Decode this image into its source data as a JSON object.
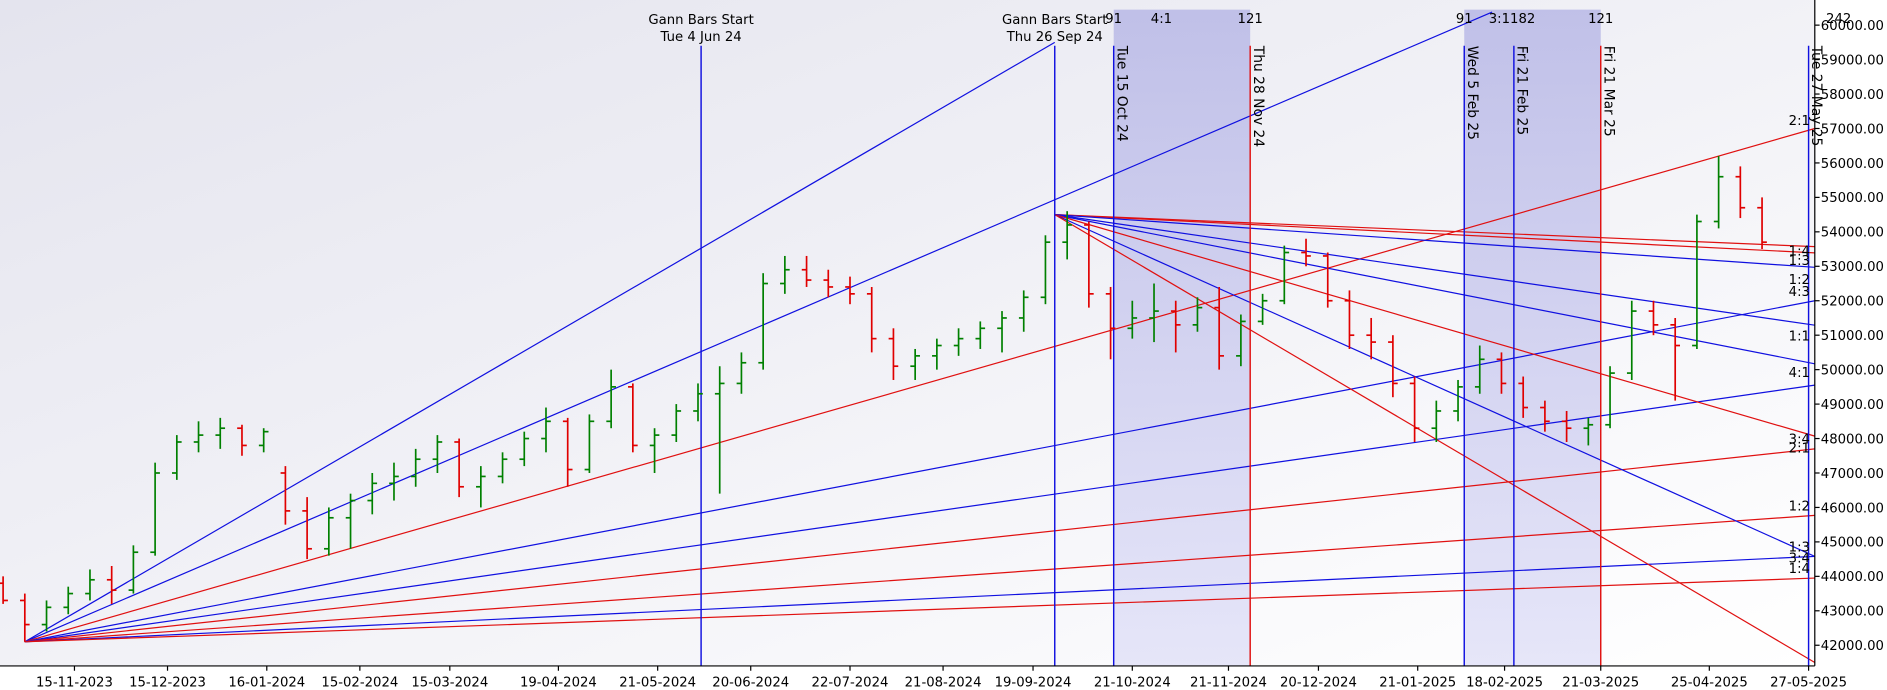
{
  "chart_data": {
    "type": "ohlc",
    "xlim": [
      "22-10-2023",
      "29-05-2025"
    ],
    "ylim": [
      41400,
      60450
    ],
    "yticks": [
      {
        "value": 42000,
        "label": "42000.00"
      },
      {
        "value": 43000,
        "label": "43000.00"
      },
      {
        "value": 44000,
        "label": "44000.00"
      },
      {
        "value": 45000,
        "label": "45000.00"
      },
      {
        "value": 46000,
        "label": "46000.00"
      },
      {
        "value": 47000,
        "label": "47000.00"
      },
      {
        "value": 48000,
        "label": "48000.00"
      },
      {
        "value": 49000,
        "label": "49000.00"
      },
      {
        "value": 50000,
        "label": "50000.00"
      },
      {
        "value": 51000,
        "label": "51000.00"
      },
      {
        "value": 52000,
        "label": "52000.00"
      },
      {
        "value": 53000,
        "label": "53000.00"
      },
      {
        "value": 54000,
        "label": "54000.00"
      },
      {
        "value": 55000,
        "label": "55000.00"
      },
      {
        "value": 56000,
        "label": "56000.00"
      },
      {
        "value": 57000,
        "label": "57000.00"
      },
      {
        "value": 58000,
        "label": "58000.00"
      },
      {
        "value": 59000,
        "label": "59000.00"
      },
      {
        "value": 60000,
        "label": "60000.00"
      }
    ],
    "xticks": [
      "15-11-2023",
      "15-12-2023",
      "16-01-2024",
      "15-02-2024",
      "15-03-2024",
      "19-04-2024",
      "21-05-2024",
      "20-06-2024",
      "22-07-2024",
      "21-08-2024",
      "19-09-2024",
      "21-10-2024",
      "21-11-2024",
      "20-12-2024",
      "21-01-2025",
      "18-02-2025",
      "21-03-2025",
      "25-04-2025",
      "27-05-2025"
    ],
    "up_color": "#008000",
    "down_color": "#e00000",
    "x": [
      "23-10-2023",
      "30-10-2023",
      "06-11-2023",
      "13-11-2023",
      "20-11-2023",
      "27-11-2023",
      "04-12-2023",
      "11-12-2023",
      "18-12-2023",
      "25-12-2023",
      "01-01-2024",
      "08-01-2024",
      "15-01-2024",
      "22-01-2024",
      "29-01-2024",
      "05-02-2024",
      "12-02-2024",
      "19-02-2024",
      "26-02-2024",
      "04-03-2024",
      "11-03-2024",
      "18-03-2024",
      "25-03-2024",
      "01-04-2024",
      "08-04-2024",
      "15-04-2024",
      "22-04-2024",
      "29-04-2024",
      "06-05-2024",
      "13-05-2024",
      "20-05-2024",
      "27-05-2024",
      "03-06-2024",
      "10-06-2024",
      "17-06-2024",
      "24-06-2024",
      "01-07-2024",
      "08-07-2024",
      "15-07-2024",
      "22-07-2024",
      "29-07-2024",
      "05-08-2024",
      "12-08-2024",
      "19-08-2024",
      "26-08-2024",
      "02-09-2024",
      "09-09-2024",
      "16-09-2024",
      "23-09-2024",
      "30-09-2024",
      "07-10-2024",
      "14-10-2024",
      "21-10-2024",
      "28-10-2024",
      "04-11-2024",
      "11-11-2024",
      "18-11-2024",
      "25-11-2024",
      "02-12-2024",
      "09-12-2024",
      "16-12-2024",
      "23-12-2024",
      "30-12-2024",
      "06-01-2025",
      "13-01-2025",
      "20-01-2025",
      "27-01-2025",
      "03-02-2025",
      "10-02-2025",
      "17-02-2025",
      "24-02-2025",
      "03-03-2025",
      "10-03-2025",
      "17-03-2025",
      "24-03-2025",
      "31-03-2025",
      "07-04-2025",
      "14-04-2025",
      "21-04-2025",
      "28-04-2025",
      "05-05-2025",
      "12-05-2025"
    ],
    "open": [
      43800,
      43300,
      42600,
      43100,
      43500,
      43900,
      43600,
      44700,
      47000,
      47900,
      48100,
      48300,
      47800,
      47000,
      45900,
      44800,
      45700,
      46200,
      46700,
      46900,
      47400,
      47900,
      46600,
      46900,
      47400,
      48000,
      48500,
      47100,
      48500,
      49500,
      47800,
      48100,
      48800,
      49300,
      49600,
      50200,
      52500,
      52900,
      52600,
      52400,
      52200,
      50900,
      50100,
      50400,
      50700,
      50900,
      51200,
      51500,
      52100,
      53700,
      54200,
      52200,
      51200,
      51500,
      51700,
      51300,
      51800,
      50400,
      51400,
      52000,
      53400,
      53300,
      52000,
      51000,
      50800,
      49600,
      48300,
      48800,
      49500,
      50300,
      49600,
      48900,
      48500,
      48300,
      48400,
      49900,
      51700,
      51300,
      50700,
      54300,
      55600,
      54700
    ],
    "high": [
      44000,
      43500,
      43300,
      43700,
      44200,
      44300,
      44900,
      47300,
      48100,
      48500,
      48600,
      48400,
      48300,
      47200,
      46300,
      46000,
      46400,
      47000,
      47300,
      47700,
      48100,
      48000,
      47200,
      47600,
      48200,
      48900,
      48600,
      48700,
      50000,
      49600,
      48300,
      49000,
      49600,
      50100,
      50500,
      52800,
      53300,
      53300,
      52900,
      52700,
      52400,
      51200,
      50600,
      50900,
      51200,
      51400,
      51700,
      52300,
      53900,
      54600,
      54300,
      52400,
      52000,
      52500,
      52000,
      52100,
      52400,
      51600,
      52200,
      53600,
      53800,
      53400,
      52300,
      51500,
      51000,
      49800,
      49100,
      49700,
      50700,
      50500,
      49800,
      49100,
      48800,
      48600,
      50100,
      52000,
      52000,
      51500,
      54500,
      56200,
      55900,
      55000
    ],
    "low": [
      43200,
      42100,
      42400,
      42900,
      43300,
      43200,
      43500,
      44600,
      46800,
      47600,
      47700,
      47500,
      47600,
      45500,
      44500,
      44600,
      44800,
      45800,
      46200,
      46600,
      47000,
      46300,
      46000,
      46700,
      47200,
      47600,
      46600,
      47000,
      48300,
      47600,
      47000,
      47900,
      48500,
      46400,
      49300,
      50000,
      52200,
      52400,
      52100,
      51900,
      50500,
      49700,
      49700,
      50000,
      50400,
      50600,
      50500,
      51100,
      51900,
      53200,
      51800,
      50300,
      50900,
      50800,
      50500,
      51100,
      50000,
      50100,
      51300,
      51900,
      53000,
      51800,
      50600,
      50300,
      49200,
      47900,
      47900,
      48500,
      49300,
      49300,
      48600,
      48200,
      47900,
      47800,
      48300,
      49700,
      51000,
      49100,
      50600,
      54100,
      54400,
      53500
    ],
    "close": [
      43300,
      42600,
      43100,
      43500,
      43900,
      43600,
      44700,
      47000,
      47900,
      48100,
      48300,
      47800,
      48200,
      45900,
      44800,
      45700,
      46200,
      46700,
      46900,
      47400,
      47900,
      46600,
      46900,
      47400,
      48000,
      48500,
      47100,
      48500,
      49500,
      47800,
      48100,
      48800,
      49300,
      49600,
      50200,
      52500,
      52900,
      52600,
      52400,
      52200,
      50900,
      50100,
      50400,
      50700,
      50900,
      51200,
      51500,
      52100,
      53700,
      54200,
      52200,
      51200,
      51500,
      51700,
      51300,
      51800,
      50400,
      51400,
      52000,
      53400,
      53300,
      52000,
      51000,
      50800,
      49600,
      48300,
      48800,
      49500,
      50300,
      49600,
      48900,
      48500,
      48300,
      48400,
      49900,
      51700,
      51300,
      50700,
      54300,
      55600,
      54700,
      53700
    ],
    "fans": [
      {
        "color": "#1010e0",
        "from": [
          "30-10-2023",
          42100
        ],
        "to": [
          "26-09-2024",
          59500
        ]
      },
      {
        "color": "#1010e0",
        "from": [
          "30-10-2023",
          42100
        ],
        "to": [
          "14-02-2025",
          60380
        ]
      },
      {
        "color": "#e01010",
        "from": [
          "30-10-2023",
          42100
        ],
        "to": [
          "29-05-2025",
          57000
        ]
      },
      {
        "color": "#1010e0",
        "from": [
          "30-10-2023",
          42100
        ],
        "to": [
          "29-05-2025",
          52000
        ]
      },
      {
        "color": "#1010e0",
        "from": [
          "30-10-2023",
          42100
        ],
        "to": [
          "29-05-2025",
          49550
        ]
      },
      {
        "color": "#e01010",
        "from": [
          "30-10-2023",
          42100
        ],
        "to": [
          "29-05-2025",
          47700
        ]
      },
      {
        "color": "#e01010",
        "from": [
          "30-10-2023",
          42100
        ],
        "to": [
          "29-05-2025",
          45770
        ]
      },
      {
        "color": "#1010e0",
        "from": [
          "30-10-2023",
          42100
        ],
        "to": [
          "29-05-2025",
          44580
        ]
      },
      {
        "color": "#e01010",
        "from": [
          "30-10-2023",
          42100
        ],
        "to": [
          "29-05-2025",
          43950
        ]
      },
      {
        "color": "#e01010",
        "from": [
          "26-09-2024",
          54500
        ],
        "to": [
          "29-05-2025",
          53570
        ]
      },
      {
        "color": "#e01010",
        "from": [
          "26-09-2024",
          54500
        ],
        "to": [
          "29-05-2025",
          53390
        ]
      },
      {
        "color": "#1010e0",
        "from": [
          "26-09-2024",
          54500
        ],
        "to": [
          "29-05-2025",
          52970
        ]
      },
      {
        "color": "#1010e0",
        "from": [
          "26-09-2024",
          54500
        ],
        "to": [
          "29-05-2025",
          51290
        ]
      },
      {
        "color": "#1010e0",
        "from": [
          "26-09-2024",
          54500
        ],
        "to": [
          "29-05-2025",
          50170
        ]
      },
      {
        "color": "#e01010",
        "from": [
          "26-09-2024",
          54500
        ],
        "to": [
          "29-05-2025",
          48070
        ]
      },
      {
        "color": "#1010e0",
        "from": [
          "26-09-2024",
          54500
        ],
        "to": [
          "29-05-2025",
          44580
        ]
      },
      {
        "color": "#e01010",
        "from": [
          "26-09-2024",
          54500
        ],
        "to": [
          "29-05-2025",
          41500
        ]
      }
    ],
    "fan_labels": [
      {
        "text": "2:1",
        "y": 57240
      },
      {
        "text": "1:4",
        "y": 53460
      },
      {
        "text": "1:3",
        "y": 53180
      },
      {
        "text": "1:2",
        "y": 52620
      },
      {
        "text": "4:3",
        "y": 52270
      },
      {
        "text": "1:1",
        "y": 50980
      },
      {
        "text": "4:1",
        "y": 49930
      },
      {
        "text": "3:4",
        "y": 48000
      },
      {
        "text": "2:1",
        "y": 47730
      },
      {
        "text": "1:2",
        "y": 46050
      },
      {
        "text": "1:3",
        "y": 44860
      },
      {
        "text": "3:4",
        "y": 44540
      },
      {
        "text": "1:4",
        "y": 44230
      }
    ],
    "gann_starts": [
      {
        "title": "Gann Bars Start",
        "date_label": "Tue 4 Jun 24",
        "date": "04-06-2024",
        "color": "#1010e0"
      },
      {
        "title": "Gann Bars Start",
        "date_label": "Thu 26 Sep 24",
        "date": "26-09-2024",
        "color": "#1010e0"
      }
    ],
    "markers": [
      {
        "label": "Tue 15 Oct 24",
        "date": "15-10-2024",
        "color": "#1010e0"
      },
      {
        "label": "Thu 28 Nov 24",
        "date": "28-11-2024",
        "color": "#e01010"
      },
      {
        "label": "Wed 5 Feb 25",
        "date": "05-02-2025",
        "color": "#1010e0"
      },
      {
        "label": "Fri 21 Feb 25",
        "date": "21-02-2025",
        "color": "#1010e0"
      },
      {
        "label": "Fri 21 Mar 25",
        "date": "21-03-2025",
        "color": "#e01010"
      },
      {
        "label": "Tue 27 May 25",
        "date": "27-05-2025",
        "color": "#1010e0",
        "count": 242
      }
    ],
    "regions": [
      {
        "from": "15-10-2024",
        "to": "28-11-2024",
        "start_count": 91,
        "ratio": "4:1",
        "end_count": 121
      },
      {
        "from": "05-02-2025",
        "to": "21-03-2025",
        "start_count": 91,
        "ratio": "3:1182",
        "end_count": 121
      }
    ]
  }
}
